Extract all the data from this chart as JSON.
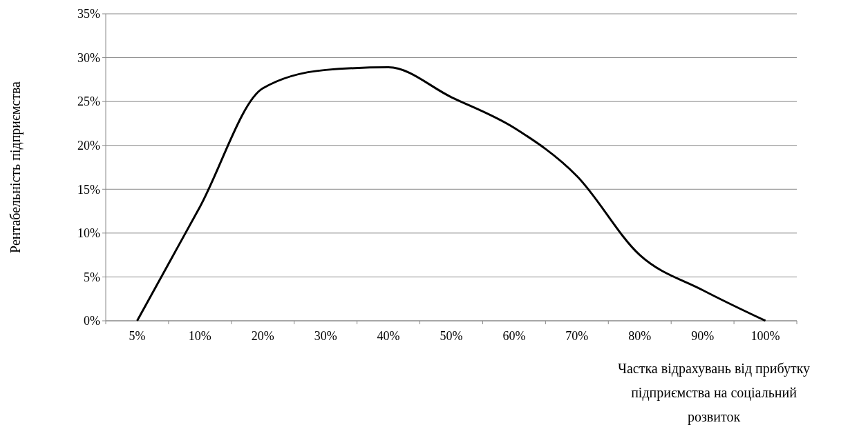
{
  "chart_data": {
    "type": "line",
    "xlabel": "Частка відрахувань від прибутку підприємства на соціальний розвиток",
    "ylabel": "Рентабельність підприємства",
    "categories": [
      "5%",
      "10%",
      "20%",
      "30%",
      "40%",
      "50%",
      "60%",
      "70%",
      "80%",
      "90%",
      "100%"
    ],
    "series": [
      {
        "color": "#000000",
        "values": [
          0,
          13,
          26.5,
          28.6,
          28.9,
          25.5,
          22,
          16.5,
          7.5,
          3.5,
          0
        ]
      }
    ],
    "ylim": [
      0,
      35
    ],
    "yticks": [
      {
        "value": 0,
        "label": "0%"
      },
      {
        "value": 5,
        "label": "5%"
      },
      {
        "value": 10,
        "label": "10%"
      },
      {
        "value": 15,
        "label": "15%"
      },
      {
        "value": 20,
        "label": "20%"
      },
      {
        "value": 25,
        "label": "25%"
      },
      {
        "value": 30,
        "label": "30%"
      },
      {
        "value": 35,
        "label": "35%"
      }
    ],
    "grid": "y",
    "marker": "none",
    "line_style": "solid"
  }
}
